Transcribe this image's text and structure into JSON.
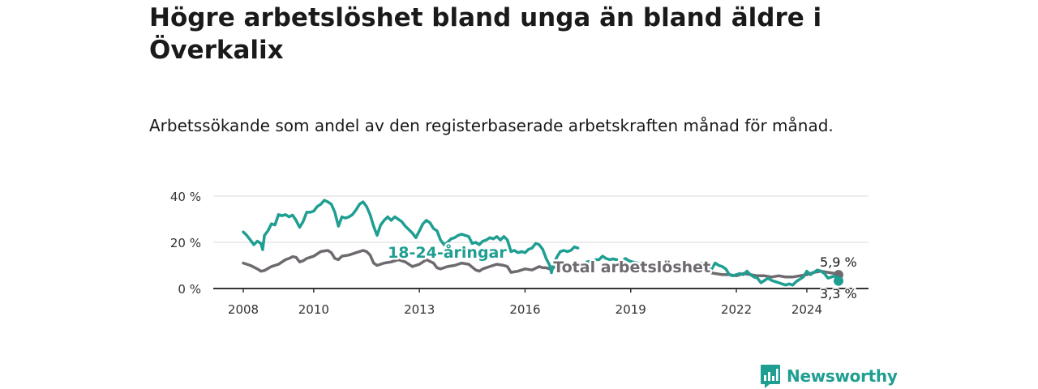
{
  "title": "Högre arbetslöshet bland unga än bland äldre i Överkalix",
  "subtitle": "Arbetssökande som andel av den registerbaserade arbetskraften månad för månad.",
  "brand": {
    "name": "Newsworthy",
    "icon": "newsworthy-logo-icon",
    "color": "#1f9e92"
  },
  "chart_data": {
    "type": "line",
    "xlim": [
      2007.8,
      2025.4
    ],
    "ylim": [
      0,
      40
    ],
    "grid": true,
    "x_ticks": [
      {
        "value": 2008,
        "label": "2008"
      },
      {
        "value": 2010,
        "label": "2010"
      },
      {
        "value": 2013,
        "label": "2013"
      },
      {
        "value": 2016,
        "label": "2016"
      },
      {
        "value": 2019,
        "label": "2019"
      },
      {
        "value": 2022,
        "label": "2022"
      },
      {
        "value": 2024,
        "label": "2024"
      }
    ],
    "y_ticks": [
      {
        "value": 0,
        "label": "0 %"
      },
      {
        "value": 20,
        "label": "20 %"
      },
      {
        "value": 40,
        "label": "40 %"
      }
    ],
    "series": [
      {
        "name": "18-24-åringar",
        "color": "#1f9e92",
        "label_at": [
          2012.1,
          13.4
        ],
        "end_label": "3,3 %",
        "gaps": [
          [
            2017.5,
            2017.75
          ],
          [
            2018.6,
            2018.75
          ],
          [
            2019.2,
            2021.0
          ]
        ],
        "points": [
          [
            2008.0,
            24.5
          ],
          [
            2008.1,
            23.0
          ],
          [
            2008.2,
            21.0
          ],
          [
            2008.3,
            19.0
          ],
          [
            2008.4,
            20.5
          ],
          [
            2008.5,
            19.5
          ],
          [
            2008.55,
            16.8
          ],
          [
            2008.6,
            23.0
          ],
          [
            2008.7,
            25.0
          ],
          [
            2008.8,
            28.0
          ],
          [
            2008.9,
            27.5
          ],
          [
            2009.0,
            32.0
          ],
          [
            2009.1,
            31.5
          ],
          [
            2009.2,
            32.0
          ],
          [
            2009.3,
            31.0
          ],
          [
            2009.4,
            31.8
          ],
          [
            2009.5,
            29.5
          ],
          [
            2009.6,
            26.5
          ],
          [
            2009.7,
            29.0
          ],
          [
            2009.8,
            33.0
          ],
          [
            2009.9,
            33.0
          ],
          [
            2010.0,
            33.5
          ],
          [
            2010.1,
            35.5
          ],
          [
            2010.2,
            36.5
          ],
          [
            2010.3,
            38.2
          ],
          [
            2010.4,
            37.5
          ],
          [
            2010.5,
            36.5
          ],
          [
            2010.6,
            33.0
          ],
          [
            2010.7,
            27.0
          ],
          [
            2010.8,
            31.0
          ],
          [
            2010.9,
            30.5
          ],
          [
            2011.0,
            31.0
          ],
          [
            2011.1,
            32.0
          ],
          [
            2011.2,
            34.0
          ],
          [
            2011.3,
            36.5
          ],
          [
            2011.4,
            37.5
          ],
          [
            2011.5,
            35.5
          ],
          [
            2011.6,
            32.0
          ],
          [
            2011.7,
            27.0
          ],
          [
            2011.8,
            23.0
          ],
          [
            2011.9,
            27.5
          ],
          [
            2012.0,
            29.5
          ],
          [
            2012.1,
            31.0
          ],
          [
            2012.2,
            29.5
          ],
          [
            2012.3,
            31.0
          ],
          [
            2012.4,
            30.0
          ],
          [
            2012.5,
            29.0
          ],
          [
            2012.6,
            27.0
          ],
          [
            2012.7,
            25.5
          ],
          [
            2012.8,
            24.0
          ],
          [
            2012.9,
            22.0
          ],
          [
            2013.0,
            25.0
          ],
          [
            2013.1,
            28.0
          ],
          [
            2013.2,
            29.5
          ],
          [
            2013.3,
            28.5
          ],
          [
            2013.4,
            26.0
          ],
          [
            2013.5,
            25.0
          ],
          [
            2013.6,
            21.0
          ],
          [
            2013.7,
            19.0
          ],
          [
            2013.8,
            20.0
          ],
          [
            2013.9,
            21.5
          ],
          [
            2014.0,
            22.0
          ],
          [
            2014.1,
            23.0
          ],
          [
            2014.2,
            23.5
          ],
          [
            2014.3,
            23.0
          ],
          [
            2014.4,
            22.5
          ],
          [
            2014.5,
            19.5
          ],
          [
            2014.6,
            20.0
          ],
          [
            2014.7,
            19.0
          ],
          [
            2014.8,
            20.5
          ],
          [
            2014.9,
            21.0
          ],
          [
            2015.0,
            22.0
          ],
          [
            2015.1,
            21.5
          ],
          [
            2015.2,
            22.5
          ],
          [
            2015.3,
            21.0
          ],
          [
            2015.4,
            22.5
          ],
          [
            2015.5,
            21.0
          ],
          [
            2015.6,
            16.0
          ],
          [
            2015.7,
            16.5
          ],
          [
            2015.8,
            15.5
          ],
          [
            2015.9,
            16.0
          ],
          [
            2016.0,
            15.5
          ],
          [
            2016.1,
            17.0
          ],
          [
            2016.2,
            17.5
          ],
          [
            2016.3,
            19.5
          ],
          [
            2016.4,
            19.0
          ],
          [
            2016.5,
            17.0
          ],
          [
            2016.6,
            13.0
          ],
          [
            2016.7,
            10.0
          ],
          [
            2016.75,
            6.8
          ],
          [
            2016.8,
            10.0
          ],
          [
            2016.9,
            13.5
          ],
          [
            2017.0,
            16.0
          ],
          [
            2017.1,
            16.5
          ],
          [
            2017.2,
            16.0
          ],
          [
            2017.3,
            16.5
          ],
          [
            2017.4,
            18.0
          ],
          [
            2017.5,
            17.5
          ],
          [
            2017.75,
            11.5
          ],
          [
            2017.9,
            12.0
          ],
          [
            2018.0,
            12.5
          ],
          [
            2018.1,
            12.5
          ],
          [
            2018.2,
            14.0
          ],
          [
            2018.3,
            13.0
          ],
          [
            2018.4,
            12.5
          ],
          [
            2018.5,
            12.8
          ],
          [
            2018.6,
            12.5
          ],
          [
            2018.75,
            12.0
          ],
          [
            2018.85,
            13.0
          ],
          [
            2018.95,
            12.0
          ],
          [
            2019.05,
            11.5
          ],
          [
            2019.2,
            11.0
          ],
          [
            2021.0,
            11.0
          ],
          [
            2021.1,
            10.0
          ],
          [
            2021.2,
            9.0
          ],
          [
            2021.3,
            8.5
          ],
          [
            2021.4,
            11.0
          ],
          [
            2021.5,
            10.0
          ],
          [
            2021.6,
            9.5
          ],
          [
            2021.7,
            8.5
          ],
          [
            2021.8,
            6.0
          ],
          [
            2021.9,
            5.5
          ],
          [
            2022.0,
            6.0
          ],
          [
            2022.1,
            6.5
          ],
          [
            2022.2,
            6.0
          ],
          [
            2022.3,
            7.5
          ],
          [
            2022.4,
            6.0
          ],
          [
            2022.5,
            5.0
          ],
          [
            2022.6,
            4.5
          ],
          [
            2022.7,
            2.5
          ],
          [
            2022.8,
            3.5
          ],
          [
            2022.9,
            4.5
          ],
          [
            2023.0,
            3.5
          ],
          [
            2023.1,
            3.0
          ],
          [
            2023.2,
            2.5
          ],
          [
            2023.3,
            2.0
          ],
          [
            2023.4,
            1.5
          ],
          [
            2023.5,
            2.0
          ],
          [
            2023.6,
            1.5
          ],
          [
            2023.7,
            3.0
          ],
          [
            2023.8,
            4.0
          ],
          [
            2023.9,
            5.0
          ],
          [
            2024.0,
            7.5
          ],
          [
            2024.1,
            6.0
          ],
          [
            2024.2,
            7.0
          ],
          [
            2024.3,
            8.0
          ],
          [
            2024.4,
            7.5
          ],
          [
            2024.5,
            6.5
          ],
          [
            2024.6,
            4.5
          ],
          [
            2024.7,
            5.0
          ],
          [
            2024.8,
            5.5
          ],
          [
            2024.9,
            3.3
          ]
        ]
      },
      {
        "name": "Total arbetslöshet",
        "color": "#6e6a6f",
        "label_at": [
          2016.8,
          7.0
        ],
        "end_label": "5,9 %",
        "gaps": [
          [
            2017.5,
            2021.0
          ]
        ],
        "points": [
          [
            2008.0,
            11.0
          ],
          [
            2008.2,
            10.0
          ],
          [
            2008.4,
            8.5
          ],
          [
            2008.5,
            7.5
          ],
          [
            2008.6,
            7.8
          ],
          [
            2008.8,
            9.5
          ],
          [
            2009.0,
            10.5
          ],
          [
            2009.2,
            12.5
          ],
          [
            2009.3,
            13.0
          ],
          [
            2009.4,
            13.8
          ],
          [
            2009.5,
            13.5
          ],
          [
            2009.6,
            11.5
          ],
          [
            2009.7,
            12.0
          ],
          [
            2009.8,
            13.0
          ],
          [
            2010.0,
            14.0
          ],
          [
            2010.2,
            16.0
          ],
          [
            2010.4,
            16.5
          ],
          [
            2010.5,
            15.5
          ],
          [
            2010.6,
            13.0
          ],
          [
            2010.7,
            12.5
          ],
          [
            2010.8,
            14.0
          ],
          [
            2011.0,
            14.5
          ],
          [
            2011.2,
            15.5
          ],
          [
            2011.4,
            16.5
          ],
          [
            2011.5,
            16.0
          ],
          [
            2011.6,
            14.5
          ],
          [
            2011.7,
            11.0
          ],
          [
            2011.8,
            10.0
          ],
          [
            2012.0,
            11.0
          ],
          [
            2012.2,
            11.5
          ],
          [
            2012.4,
            12.5
          ],
          [
            2012.6,
            11.5
          ],
          [
            2012.8,
            9.5
          ],
          [
            2013.0,
            10.5
          ],
          [
            2013.2,
            12.5
          ],
          [
            2013.4,
            11.0
          ],
          [
            2013.5,
            9.0
          ],
          [
            2013.6,
            8.5
          ],
          [
            2013.8,
            9.5
          ],
          [
            2014.0,
            10.0
          ],
          [
            2014.2,
            11.0
          ],
          [
            2014.4,
            10.5
          ],
          [
            2014.6,
            8.0
          ],
          [
            2014.7,
            7.5
          ],
          [
            2014.8,
            8.5
          ],
          [
            2015.0,
            9.5
          ],
          [
            2015.2,
            10.5
          ],
          [
            2015.4,
            10.0
          ],
          [
            2015.5,
            9.5
          ],
          [
            2015.6,
            7.0
          ],
          [
            2015.8,
            7.5
          ],
          [
            2016.0,
            8.5
          ],
          [
            2016.2,
            8.0
          ],
          [
            2016.4,
            9.5
          ],
          [
            2016.5,
            9.0
          ],
          [
            2016.6,
            9.0
          ],
          [
            2016.7,
            8.5
          ],
          [
            2016.9,
            9.5
          ],
          [
            2017.1,
            9.0
          ],
          [
            2017.3,
            9.5
          ],
          [
            2017.5,
            9.0
          ],
          [
            2021.0,
            8.0
          ],
          [
            2021.2,
            7.0
          ],
          [
            2021.4,
            6.5
          ],
          [
            2021.6,
            6.0
          ],
          [
            2021.8,
            6.0
          ],
          [
            2022.0,
            5.5
          ],
          [
            2022.2,
            6.5
          ],
          [
            2022.4,
            6.0
          ],
          [
            2022.6,
            5.5
          ],
          [
            2022.8,
            5.5
          ],
          [
            2023.0,
            5.0
          ],
          [
            2023.2,
            5.5
          ],
          [
            2023.4,
            5.0
          ],
          [
            2023.6,
            5.0
          ],
          [
            2023.8,
            5.5
          ],
          [
            2024.0,
            6.0
          ],
          [
            2024.2,
            7.0
          ],
          [
            2024.4,
            7.5
          ],
          [
            2024.6,
            7.0
          ],
          [
            2024.8,
            6.5
          ],
          [
            2024.9,
            5.9
          ]
        ]
      }
    ]
  }
}
